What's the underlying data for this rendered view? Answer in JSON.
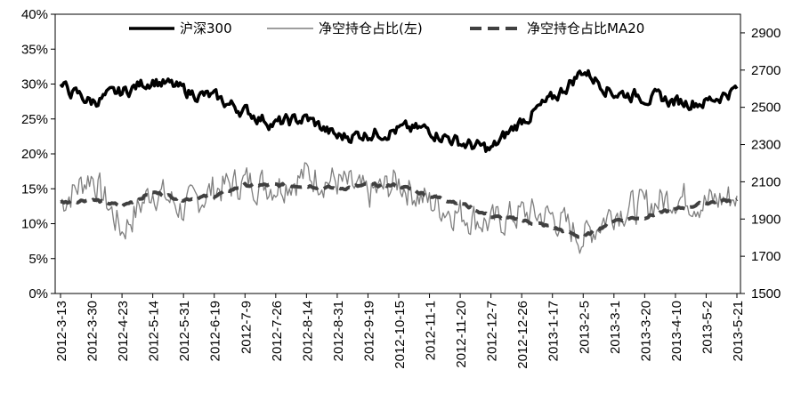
{
  "chart_data": {
    "type": "line",
    "x": [
      "2012-3-13",
      "2012-3-30",
      "2012-4-23",
      "2012-5-14",
      "2012-5-31",
      "2012-6-19",
      "2012-7-9",
      "2012-7-26",
      "2012-8-14",
      "2012-8-31",
      "2012-9-19",
      "2012-10-15",
      "2012-11-1",
      "2012-11-20",
      "2012-12-7",
      "2012-12-26",
      "2013-1-17",
      "2013-2-5",
      "2013-3-1",
      "2013-3-20",
      "2013-4-10",
      "2013-5-2",
      "2013-5-21"
    ],
    "series": [
      {
        "name": "沪深300",
        "axis": "right",
        "style": "thick-solid",
        "color": "#000000",
        "values": [
          2610,
          2530,
          2580,
          2650,
          2590,
          2550,
          2480,
          2410,
          2440,
          2340,
          2360,
          2380,
          2380,
          2310,
          2270,
          2430,
          2540,
          2700,
          2580,
          2560,
          2530,
          2530,
          2600
        ]
      },
      {
        "name": "净空持仓占比(左)",
        "axis": "left",
        "style": "thin-solid",
        "color": "#7f7f7f",
        "values": [
          0.13,
          0.17,
          0.09,
          0.15,
          0.12,
          0.15,
          0.16,
          0.155,
          0.17,
          0.16,
          0.14,
          0.16,
          0.13,
          0.115,
          0.1,
          0.115,
          0.11,
          0.08,
          0.12,
          0.125,
          0.14,
          0.13,
          0.14
        ]
      },
      {
        "name": "净空持仓占比MA20",
        "axis": "left",
        "style": "thick-dashed",
        "color": "#404040",
        "values": [
          0.13,
          0.135,
          0.125,
          0.145,
          0.135,
          0.14,
          0.155,
          0.155,
          0.155,
          0.15,
          0.155,
          0.155,
          0.14,
          0.13,
          0.11,
          0.105,
          0.095,
          0.08,
          0.105,
          0.11,
          0.12,
          0.13,
          0.135
        ]
      }
    ],
    "yleft": {
      "min": 0,
      "max": 0.4,
      "ticks": [
        "0%",
        "5%",
        "10%",
        "15%",
        "20%",
        "25%",
        "30%",
        "35%",
        "40%"
      ]
    },
    "yright": {
      "min": 1500,
      "max": 3000,
      "ticks": [
        "1500",
        "1700",
        "1900",
        "2100",
        "2300",
        "2500",
        "2700",
        "2900"
      ]
    },
    "grid": false,
    "legend_position": "top"
  },
  "colors": {
    "hs300": "#000000",
    "ratio": "#7f7f7f",
    "ma20": "#404040"
  }
}
